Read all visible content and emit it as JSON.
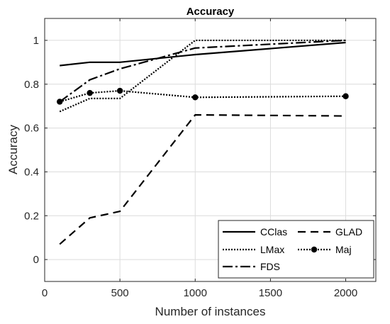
{
  "chart_data": {
    "type": "line",
    "title": "Accuracy",
    "xlabel": "Number of instances",
    "ylabel": "Accuracy",
    "xlim": [
      0,
      2200
    ],
    "ylim": [
      -0.1,
      1.1
    ],
    "xticks": [
      0,
      500,
      1000,
      1500,
      2000
    ],
    "yticks": [
      0,
      0.2,
      0.4,
      0.6,
      0.8,
      1
    ],
    "xtick_labels": [
      "0",
      "500",
      "1000",
      "1500",
      "2000"
    ],
    "ytick_labels": [
      "0",
      "0.2",
      "0.4",
      "0.6",
      "0.8",
      "1"
    ],
    "grid": true,
    "legend_position": "bottom-right",
    "x": [
      100,
      300,
      500,
      1000,
      2000
    ],
    "series": [
      {
        "name": "CClas",
        "style": "solid",
        "marker": "none",
        "values": [
          0.885,
          0.9,
          0.9,
          0.935,
          0.99
        ]
      },
      {
        "name": "GLAD",
        "style": "dashed",
        "marker": "none",
        "values": [
          0.07,
          0.19,
          0.22,
          0.66,
          0.655
        ]
      },
      {
        "name": "LMax",
        "style": "dotted",
        "marker": "none",
        "values": [
          0.675,
          0.735,
          0.735,
          1.0,
          1.0
        ]
      },
      {
        "name": "Maj",
        "style": "dotted",
        "marker": "circle",
        "values": [
          0.72,
          0.76,
          0.77,
          0.74,
          0.745
        ]
      },
      {
        "name": "FDS",
        "style": "dashdot",
        "marker": "none",
        "values": [
          0.72,
          0.82,
          0.87,
          0.965,
          1.0
        ]
      }
    ],
    "color": "#000000"
  }
}
